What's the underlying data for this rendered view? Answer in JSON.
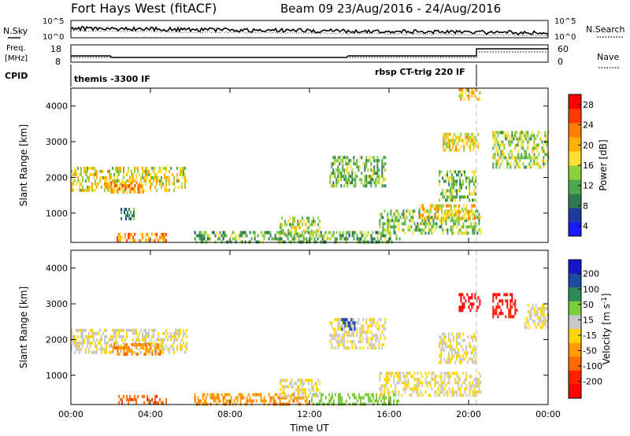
{
  "header": {
    "title": "Fort Hays West (fitACF)",
    "beam_and_dates": "Beam 09 23/Aug/2016 - 24/Aug/2016"
  },
  "panels": {
    "nsky": {
      "left_label": "N.Sky",
      "right_label": "N.Search",
      "left_ticks": [
        "10^5",
        "10^0"
      ],
      "right_ticks": [
        "10^5",
        "10^0"
      ]
    },
    "freq": {
      "left_label_1": "Freq.",
      "left_label_2": "[MHz]",
      "right_label": "Nave",
      "left_ticks": [
        "18",
        "8"
      ],
      "right_ticks": [
        "60",
        "0"
      ]
    },
    "cpid": {
      "label": "CPID",
      "program_1": "themis -3300 IF",
      "program_2": "rbsp CT-trig 220 IF"
    }
  },
  "colors": {
    "power_scale": [
      "#1a1aff",
      "#1e3a9c",
      "#2f7a4f",
      "#4fa84f",
      "#8cd13c",
      "#ffe033",
      "#ffb000",
      "#ff7f00",
      "#ff3b00",
      "#ff0000"
    ],
    "velocity_scale": [
      "#1414c8",
      "#1e4aa0",
      "#2e8b57",
      "#7ccd3c",
      "#c8c8c8",
      "#ffd700",
      "#ff9d00",
      "#ff6a00",
      "#ff2200",
      "#ff0000"
    ]
  },
  "chart_data": [
    {
      "type": "heatmap",
      "title": "",
      "xlabel": "Time UT",
      "ylabel": "Slant Range [km]",
      "colorbar_label": "Power [dB]",
      "x_ticks": [
        "00:00",
        "04:00",
        "08:00",
        "12:00",
        "16:00",
        "20:00",
        "00:00"
      ],
      "y_ticks": [
        1000,
        2000,
        3000,
        4000
      ],
      "ylim": [
        180,
        4500
      ],
      "xlim_hours": [
        0,
        24
      ],
      "colorbar_ticks": [
        4,
        8,
        12,
        16,
        20,
        24,
        28
      ],
      "colorbar_range": [
        2,
        30
      ],
      "regions": [
        {
          "t": [
            0.0,
            5.8
          ],
          "r": [
            1650,
            2300
          ],
          "value": 17
        },
        {
          "t": [
            2.0,
            3.6
          ],
          "r": [
            1550,
            1900
          ],
          "value": 21
        },
        {
          "t": [
            2.5,
            3.2
          ],
          "r": [
            800,
            1150
          ],
          "value": 10
        },
        {
          "t": [
            2.3,
            4.8
          ],
          "r": [
            200,
            450
          ],
          "value": 22
        },
        {
          "t": [
            6.2,
            16.5
          ],
          "r": [
            200,
            500
          ],
          "value": 12
        },
        {
          "t": [
            10.5,
            12.5
          ],
          "r": [
            400,
            900
          ],
          "value": 15
        },
        {
          "t": [
            13.0,
            15.8
          ],
          "r": [
            1750,
            2600
          ],
          "value": 13
        },
        {
          "t": [
            15.5,
            20.6
          ],
          "r": [
            400,
            1100
          ],
          "value": 14
        },
        {
          "t": [
            17.5,
            20.3
          ],
          "r": [
            850,
            1250
          ],
          "value": 19
        },
        {
          "t": [
            18.5,
            20.4
          ],
          "r": [
            1400,
            2200
          ],
          "value": 14
        },
        {
          "t": [
            18.7,
            20.5
          ],
          "r": [
            2800,
            3250
          ],
          "value": 18
        },
        {
          "t": [
            21.2,
            24.0
          ],
          "r": [
            2300,
            3300
          ],
          "value": 15
        },
        {
          "t": [
            19.5,
            20.6
          ],
          "r": [
            4200,
            4500
          ],
          "value": 20
        }
      ]
    },
    {
      "type": "heatmap",
      "title": "",
      "xlabel": "Time UT",
      "ylabel": "Slant Range [km]",
      "colorbar_label": "Velocity [m s^-1]",
      "x_ticks": [
        "00:00",
        "04:00",
        "08:00",
        "12:00",
        "16:00",
        "20:00",
        "00:00"
      ],
      "y_ticks": [
        1000,
        2000,
        3000,
        4000
      ],
      "ylim": [
        180,
        4500
      ],
      "xlim_hours": [
        0,
        24
      ],
      "colorbar_ticks": [
        200,
        100,
        50,
        15,
        -15,
        -50,
        -100,
        -200
      ],
      "colorbar_range": [
        -250,
        250
      ],
      "regions": [
        {
          "t": [
            0.0,
            5.8
          ],
          "r": [
            1650,
            2300
          ],
          "value": 0
        },
        {
          "t": [
            2.0,
            4.5
          ],
          "r": [
            1550,
            1900
          ],
          "value": -45
        },
        {
          "t": [
            2.3,
            4.8
          ],
          "r": [
            200,
            450
          ],
          "value": -90
        },
        {
          "t": [
            6.2,
            12.0
          ],
          "r": [
            200,
            500
          ],
          "value": -40
        },
        {
          "t": [
            12.0,
            16.5
          ],
          "r": [
            200,
            500
          ],
          "value": 30
        },
        {
          "t": [
            10.5,
            12.5
          ],
          "r": [
            400,
            900
          ],
          "value": 0
        },
        {
          "t": [
            13.0,
            15.8
          ],
          "r": [
            1750,
            2600
          ],
          "value": 0
        },
        {
          "t": [
            15.5,
            20.6
          ],
          "r": [
            400,
            1100
          ],
          "value": 0
        },
        {
          "t": [
            18.5,
            20.4
          ],
          "r": [
            1400,
            2200
          ],
          "value": 0
        },
        {
          "t": [
            19.5,
            20.6
          ],
          "r": [
            2800,
            3300
          ],
          "value": -220
        },
        {
          "t": [
            21.2,
            22.4
          ],
          "r": [
            2600,
            3300
          ],
          "value": -200
        },
        {
          "t": [
            22.8,
            24.0
          ],
          "r": [
            2300,
            3000
          ],
          "value": 0
        },
        {
          "t": [
            13.6,
            14.3
          ],
          "r": [
            2300,
            2600
          ],
          "value": 150
        }
      ]
    }
  ]
}
